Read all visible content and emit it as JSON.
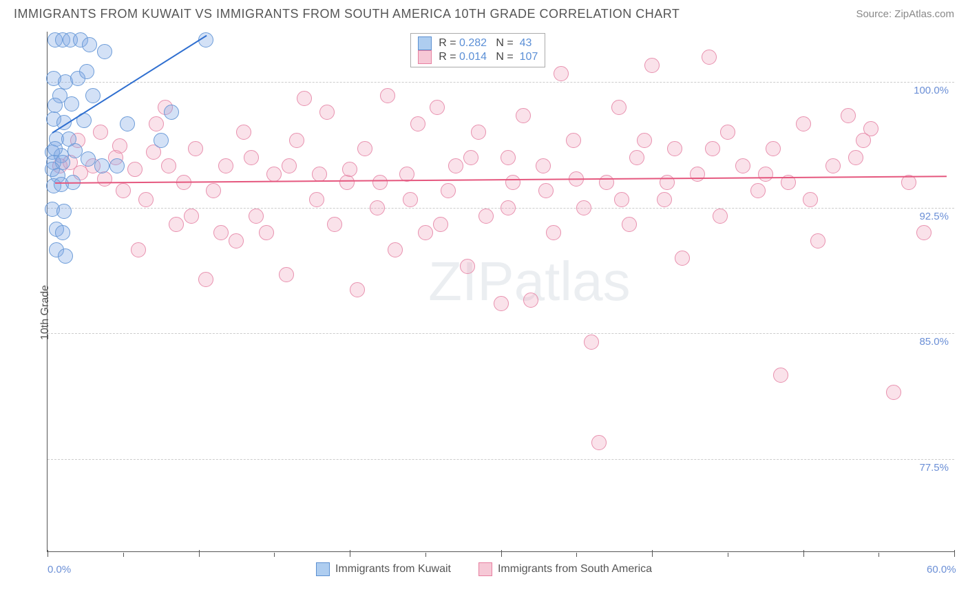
{
  "title": "IMMIGRANTS FROM KUWAIT VS IMMIGRANTS FROM SOUTH AMERICA 10TH GRADE CORRELATION CHART",
  "source": "Source: ZipAtlas.com",
  "ylabel": "10th Grade",
  "watermark": {
    "prefix": "ZIP",
    "suffix": "atlas"
  },
  "chart": {
    "type": "scatter",
    "xlim": [
      0,
      60
    ],
    "ylim": [
      72,
      103
    ],
    "yticks": [
      {
        "v": 100.0,
        "label": "100.0%"
      },
      {
        "v": 92.5,
        "label": "92.5%"
      },
      {
        "v": 85.0,
        "label": "85.0%"
      },
      {
        "v": 77.5,
        "label": "77.5%"
      }
    ],
    "xticks_major": [
      0,
      10,
      20,
      30,
      40,
      50,
      60
    ],
    "xticks_minor": [
      5,
      15,
      25,
      35,
      45,
      55
    ],
    "xtick_labels": [
      {
        "v": 0,
        "label": "0.0%"
      },
      {
        "v": 60,
        "label": "60.0%"
      }
    ],
    "marker_radius": 11,
    "marker_stroke_width": 1.5,
    "grid_color": "#cccccc",
    "axis_color": "#555555",
    "tick_label_color": "#6b8fd6",
    "background_color": "#ffffff",
    "series": [
      {
        "name": "Immigrants from Kuwait",
        "fill": "rgba(130,170,230,0.35)",
        "stroke": "#6b9bd8",
        "swatch_fill": "#aecdf0",
        "swatch_border": "#5b8fd0",
        "R": "0.282",
        "N": "43",
        "trend": {
          "x1": 0.3,
          "y1": 97.0,
          "x2": 10.5,
          "y2": 102.8,
          "color": "#2f6fd0",
          "width": 2
        },
        "points": [
          [
            0.5,
            102.5
          ],
          [
            1.0,
            102.5
          ],
          [
            1.5,
            102.5
          ],
          [
            2.2,
            102.5
          ],
          [
            2.8,
            102.2
          ],
          [
            0.4,
            100.2
          ],
          [
            1.2,
            100.0
          ],
          [
            2.0,
            100.2
          ],
          [
            2.6,
            100.6
          ],
          [
            0.8,
            99.2
          ],
          [
            0.5,
            98.6
          ],
          [
            1.6,
            98.7
          ],
          [
            0.4,
            97.8
          ],
          [
            1.1,
            97.6
          ],
          [
            2.4,
            97.7
          ],
          [
            0.6,
            96.6
          ],
          [
            1.4,
            96.6
          ],
          [
            0.3,
            95.8
          ],
          [
            0.9,
            95.6
          ],
          [
            1.8,
            95.9
          ],
          [
            0.4,
            95.2
          ],
          [
            1.0,
            95.2
          ],
          [
            2.7,
            95.4
          ],
          [
            0.3,
            94.8
          ],
          [
            0.7,
            94.4
          ],
          [
            0.4,
            93.8
          ],
          [
            0.9,
            93.9
          ],
          [
            0.3,
            92.4
          ],
          [
            1.1,
            92.3
          ],
          [
            0.6,
            91.2
          ],
          [
            1.0,
            91.0
          ],
          [
            0.6,
            90.0
          ],
          [
            1.2,
            89.6
          ],
          [
            4.6,
            95.0
          ],
          [
            5.3,
            97.5
          ],
          [
            3.8,
            101.8
          ],
          [
            7.5,
            96.5
          ],
          [
            8.2,
            98.2
          ],
          [
            10.5,
            102.5
          ],
          [
            3.0,
            99.2
          ],
          [
            3.6,
            95.0
          ],
          [
            0.5,
            96.0
          ],
          [
            1.7,
            94.0
          ]
        ]
      },
      {
        "name": "Immigrants from South America",
        "fill": "rgba(240,160,185,0.30)",
        "stroke": "#e890ae",
        "swatch_fill": "#f6c8d6",
        "swatch_border": "#e77fa0",
        "R": "0.014",
        "N": "107",
        "trend": {
          "x1": 0.5,
          "y1": 94.0,
          "x2": 59.5,
          "y2": 94.4,
          "color": "#e5577e",
          "width": 2
        },
        "points": [
          [
            0.8,
            95.0
          ],
          [
            1.5,
            95.2
          ],
          [
            2.2,
            94.6
          ],
          [
            3.0,
            95.0
          ],
          [
            3.8,
            94.2
          ],
          [
            4.5,
            95.5
          ],
          [
            5.0,
            93.5
          ],
          [
            5.8,
            94.8
          ],
          [
            6.5,
            93.0
          ],
          [
            7.0,
            95.8
          ],
          [
            7.8,
            98.5
          ],
          [
            8.5,
            91.5
          ],
          [
            9.0,
            94.0
          ],
          [
            9.8,
            96.0
          ],
          [
            10.5,
            88.2
          ],
          [
            11.0,
            93.5
          ],
          [
            11.8,
            95.0
          ],
          [
            12.5,
            90.5
          ],
          [
            13.0,
            97.0
          ],
          [
            13.8,
            92.0
          ],
          [
            14.5,
            91.0
          ],
          [
            15.0,
            94.5
          ],
          [
            15.8,
            88.5
          ],
          [
            16.5,
            96.5
          ],
          [
            17.0,
            99.0
          ],
          [
            17.8,
            93.0
          ],
          [
            18.5,
            98.2
          ],
          [
            19.0,
            91.5
          ],
          [
            19.8,
            94.0
          ],
          [
            20.5,
            87.6
          ],
          [
            21.0,
            96.0
          ],
          [
            21.8,
            92.5
          ],
          [
            22.5,
            99.2
          ],
          [
            23.0,
            90.0
          ],
          [
            23.8,
            94.5
          ],
          [
            24.5,
            97.5
          ],
          [
            25.0,
            91.0
          ],
          [
            25.8,
            98.5
          ],
          [
            26.5,
            93.5
          ],
          [
            27.0,
            95.0
          ],
          [
            27.8,
            89.0
          ],
          [
            28.5,
            97.0
          ],
          [
            29.0,
            92.0
          ],
          [
            30.0,
            86.8
          ],
          [
            30.8,
            94.0
          ],
          [
            31.5,
            98.0
          ],
          [
            32.0,
            87.0
          ],
          [
            32.8,
            95.0
          ],
          [
            33.5,
            91.0
          ],
          [
            34.0,
            100.5
          ],
          [
            34.8,
            96.5
          ],
          [
            35.5,
            92.5
          ],
          [
            36.0,
            84.5
          ],
          [
            37.0,
            94.0
          ],
          [
            37.8,
            98.5
          ],
          [
            38.5,
            91.5
          ],
          [
            39.0,
            95.5
          ],
          [
            40.0,
            101.0
          ],
          [
            40.8,
            93.0
          ],
          [
            41.5,
            96.0
          ],
          [
            42.0,
            89.5
          ],
          [
            43.0,
            94.5
          ],
          [
            43.8,
            101.5
          ],
          [
            44.5,
            92.0
          ],
          [
            45.0,
            97.0
          ],
          [
            46.0,
            95.0
          ],
          [
            47.0,
            93.5
          ],
          [
            48.0,
            96.0
          ],
          [
            48.5,
            82.5
          ],
          [
            49.0,
            94.0
          ],
          [
            50.0,
            97.5
          ],
          [
            51.0,
            90.5
          ],
          [
            52.0,
            95.0
          ],
          [
            53.0,
            98.0
          ],
          [
            54.0,
            96.5
          ],
          [
            54.5,
            97.2
          ],
          [
            56.0,
            81.5
          ],
          [
            57.0,
            94.0
          ],
          [
            58.0,
            91.0
          ],
          [
            2.0,
            96.5
          ],
          [
            3.5,
            97.0
          ],
          [
            4.8,
            96.2
          ],
          [
            6.0,
            90.0
          ],
          [
            7.2,
            97.5
          ],
          [
            8.0,
            95.0
          ],
          [
            9.5,
            92.0
          ],
          [
            11.5,
            91.0
          ],
          [
            13.5,
            95.5
          ],
          [
            16.0,
            95.0
          ],
          [
            18.0,
            94.5
          ],
          [
            20.0,
            94.8
          ],
          [
            22.0,
            94.0
          ],
          [
            24.0,
            93.0
          ],
          [
            26.0,
            91.5
          ],
          [
            28.0,
            95.5
          ],
          [
            30.5,
            92.5
          ],
          [
            33.0,
            93.5
          ],
          [
            36.5,
            78.5
          ],
          [
            38.0,
            93.0
          ],
          [
            41.0,
            94.0
          ],
          [
            44.0,
            96.0
          ],
          [
            47.5,
            94.5
          ],
          [
            50.5,
            93.0
          ],
          [
            53.5,
            95.5
          ],
          [
            30.5,
            95.5
          ],
          [
            35.0,
            94.2
          ],
          [
            39.5,
            96.5
          ]
        ]
      }
    ]
  },
  "legend": {
    "R_label": "R =",
    "N_label": "N =",
    "value_color": "#5b8fd6"
  }
}
